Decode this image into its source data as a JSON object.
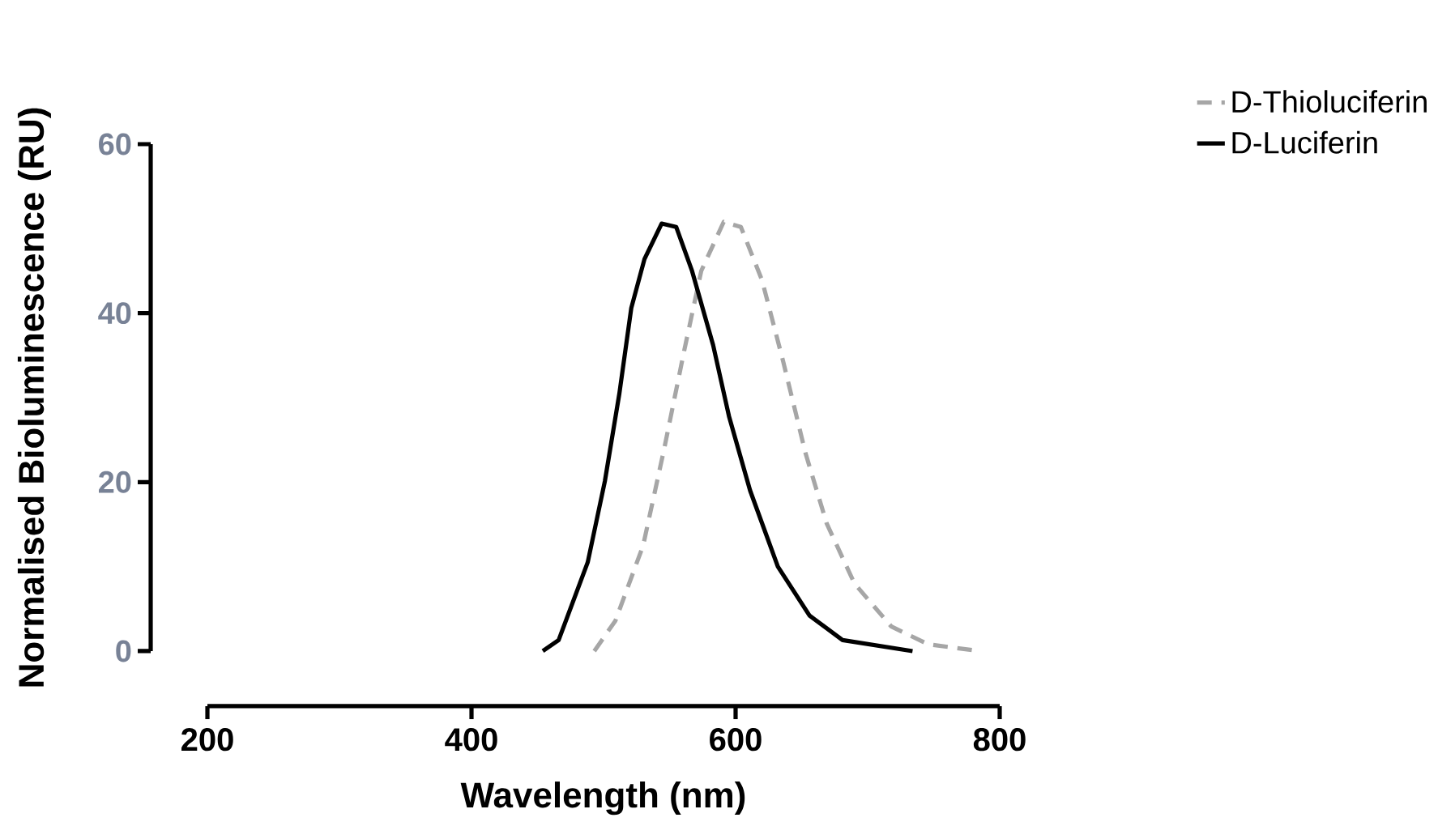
{
  "chart_data": {
    "type": "line",
    "xlabel": "Wavelength (nm)",
    "ylabel": "Normalised Bioluminescence (RU)",
    "xlim": [
      200,
      800
    ],
    "ylim": [
      0,
      60
    ],
    "xticks": [
      200,
      400,
      600,
      800
    ],
    "yticks": [
      0,
      20,
      40,
      60
    ],
    "legend": "top right",
    "series": [
      {
        "name": "D-Thioluciferin",
        "color": "#a6a6a6",
        "line_style": "dashed",
        "x": [
          493,
          509,
          530,
          546,
          561,
          574,
          591,
          604,
          620,
          636,
          653,
          669,
          690,
          718,
          746,
          785
        ],
        "values": [
          0,
          3.6,
          12.5,
          24,
          35.5,
          45,
          50.8,
          50.2,
          43.9,
          34.3,
          23.4,
          15.1,
          8,
          2.9,
          0.8,
          0
        ]
      },
      {
        "name": "D-Luciferin",
        "color": "#000000",
        "line_style": "solid",
        "x": [
          454,
          466,
          488,
          501,
          512,
          521,
          531,
          544,
          555,
          567,
          583,
          595,
          611,
          632,
          656,
          681,
          734
        ],
        "values": [
          0,
          1.3,
          10.5,
          20.1,
          30.5,
          40.6,
          46.4,
          50.6,
          50.2,
          45,
          36.2,
          27.8,
          19,
          10,
          4.2,
          1.3,
          0
        ]
      }
    ]
  }
}
